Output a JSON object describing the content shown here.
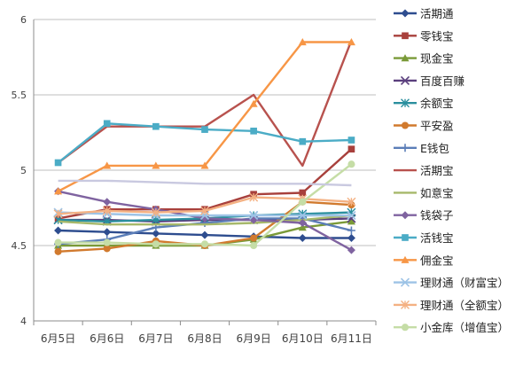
{
  "chart_data": {
    "type": "line",
    "categories": [
      "6月5日",
      "6月6日",
      "6月7日",
      "6月8日",
      "6月9日",
      "6月10日",
      "6月11日"
    ],
    "y_ticks": [
      "4",
      "4.5",
      "5",
      "5.5",
      "6"
    ],
    "ylim": [
      4,
      6
    ],
    "grid": true,
    "legend_position": "right",
    "series": [
      {
        "name": "活期通",
        "color": "#2E4D8F",
        "marker": "diamond",
        "values": [
          4.6,
          4.59,
          4.58,
          4.57,
          4.56,
          4.55,
          4.55
        ]
      },
      {
        "name": "零钱宝",
        "color": "#A8403C",
        "marker": "square",
        "values": [
          4.68,
          4.74,
          4.74,
          4.74,
          4.84,
          4.85,
          5.14
        ]
      },
      {
        "name": "现金宝",
        "color": "#7A9A38",
        "marker": "triangle",
        "values": [
          4.5,
          4.5,
          4.5,
          4.5,
          4.54,
          4.62,
          4.66
        ]
      },
      {
        "name": "百度百赚",
        "color": "#5A3F7D",
        "marker": "x",
        "values": [
          4.67,
          4.67,
          4.66,
          4.67,
          4.67,
          4.67,
          4.68
        ]
      },
      {
        "name": "余额宝",
        "color": "#2A8F9E",
        "marker": "star",
        "values": [
          4.67,
          4.66,
          4.67,
          4.68,
          4.7,
          4.71,
          4.72
        ]
      },
      {
        "name": "平安盈",
        "color": "#D17A2E",
        "marker": "circle",
        "values": [
          4.46,
          4.48,
          4.53,
          4.5,
          4.55,
          4.79,
          4.77
        ]
      },
      {
        "name": "E钱包",
        "color": "#5B7EB8",
        "marker": "plus",
        "values": [
          4.51,
          4.54,
          4.62,
          4.65,
          4.68,
          4.68,
          4.6
        ]
      },
      {
        "name": "活期宝",
        "color": "#B8524E",
        "marker": "none",
        "values": [
          5.05,
          5.29,
          5.29,
          5.29,
          5.5,
          5.03,
          5.86
        ]
      },
      {
        "name": "如意宝",
        "color": "#A6B86A",
        "marker": "none",
        "values": [
          4.66,
          4.64,
          4.64,
          4.64,
          4.65,
          4.67,
          4.7
        ]
      },
      {
        "name": "钱袋子",
        "color": "#7F63A0",
        "marker": "diamond",
        "values": [
          4.86,
          4.79,
          4.74,
          4.68,
          4.67,
          4.65,
          4.47
        ]
      },
      {
        "name": "活钱宝",
        "color": "#4BACC6",
        "marker": "square",
        "values": [
          5.05,
          5.31,
          5.29,
          5.27,
          5.26,
          5.19,
          5.2
        ]
      },
      {
        "name": "佣金宝",
        "color": "#F79646",
        "marker": "triangle",
        "values": [
          4.86,
          5.03,
          5.03,
          5.03,
          5.44,
          5.85,
          5.85
        ]
      },
      {
        "name": "理财通（财富宝）",
        "color": "#9DC3E6",
        "marker": "x",
        "values": [
          4.72,
          4.71,
          4.7,
          4.7,
          4.7,
          4.7,
          4.7
        ]
      },
      {
        "name": "理财通（全额宝）",
        "color": "#F4B183",
        "marker": "star",
        "values": [
          4.71,
          4.73,
          4.72,
          4.73,
          4.82,
          4.81,
          4.79
        ]
      },
      {
        "name": "小金库（增值宝）",
        "color": "#C5DDA6",
        "marker": "circle",
        "values": [
          4.52,
          4.52,
          4.51,
          4.51,
          4.5,
          4.79,
          5.04
        ]
      },
      {
        "name": "",
        "color": "#C9C9E0",
        "marker": "none",
        "values": [
          4.93,
          4.93,
          4.92,
          4.91,
          4.91,
          4.91,
          4.9
        ]
      }
    ]
  }
}
